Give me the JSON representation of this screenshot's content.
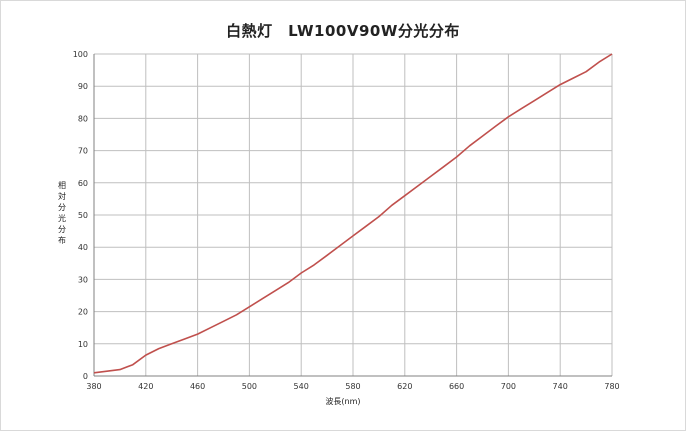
{
  "chart_data": {
    "type": "line",
    "title": "白熱灯　LW100V90W分光分布",
    "xlabel": "波長(nm)",
    "ylabel": "相対分光分布",
    "xlim": [
      380,
      780
    ],
    "ylim": [
      0,
      100
    ],
    "xticks": [
      380,
      420,
      460,
      500,
      540,
      580,
      620,
      660,
      700,
      740,
      780
    ],
    "yticks": [
      0,
      10,
      20,
      30,
      40,
      50,
      60,
      70,
      80,
      90,
      100
    ],
    "grid": true,
    "legend": "none",
    "series": [
      {
        "color": "#c0504d",
        "x": [
          380,
          390,
          400,
          410,
          420,
          430,
          440,
          450,
          460,
          470,
          480,
          490,
          500,
          510,
          520,
          530,
          540,
          550,
          560,
          570,
          580,
          590,
          600,
          610,
          620,
          630,
          640,
          650,
          660,
          670,
          680,
          690,
          700,
          710,
          720,
          730,
          740,
          750,
          760,
          770,
          780
        ],
        "y": [
          1,
          1.5,
          2,
          3.5,
          6.5,
          8.5,
          10,
          11.5,
          13,
          15,
          17,
          19,
          21.5,
          24,
          26.5,
          29,
          32,
          34.5,
          37.5,
          40.5,
          43.5,
          46.5,
          49.5,
          53,
          56,
          59,
          62,
          65,
          68,
          71.5,
          74.5,
          77.5,
          80.5,
          83,
          85.5,
          88,
          90.5,
          92.5,
          94.5,
          97.5,
          100
        ]
      }
    ]
  }
}
